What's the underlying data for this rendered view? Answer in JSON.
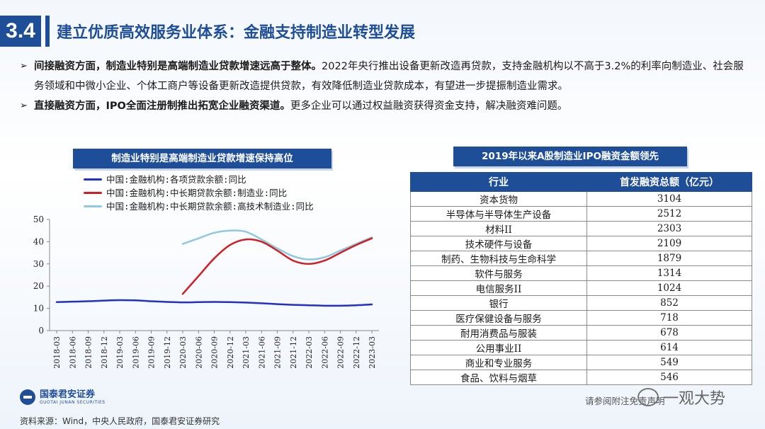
{
  "section": {
    "number": "3.4",
    "title": "建立优质高效服务业体系：金融支持制造业转型发展"
  },
  "bullets": [
    {
      "bold": "间接融资方面，制造业特别是高端制造业贷款增速远高于整体。",
      "text": "2022年央行推出设备更新改造再贷款，支持金融机构以不高于3.2%的利率向制造业、社会服务领域和中微小企业、个体工商户等设备更新改造提供贷款，有效降低制造业贷款成本，有望进一步提振制造业需求。"
    },
    {
      "bold": "直接融资方面，IPO全面注册制推出拓宽企业融资渠道。",
      "text": "更多企业可以通过权益融资获得资金支持，解决融资难问题。"
    }
  ],
  "chart_data": {
    "type": "line",
    "title": "制造业特别是高端制造业贷款增速保持高位",
    "x": [
      "2018-03",
      "2018-06",
      "2018-09",
      "2018-12",
      "2019-03",
      "2019-06",
      "2019-09",
      "2019-12",
      "2020-03",
      "2020-06",
      "2020-09",
      "2020-12",
      "2021-03",
      "2021-06",
      "2021-09",
      "2021-12",
      "2022-03",
      "2022-06",
      "2022-09",
      "2022-12",
      "2023-03"
    ],
    "ylim": [
      0,
      50
    ],
    "yticks": [
      0,
      10,
      20,
      30,
      40,
      50
    ],
    "series": [
      {
        "name": "中国:金融机构:各项贷款余额:同比",
        "color": "#2030c8",
        "values": [
          12.8,
          13.0,
          13.2,
          13.5,
          13.7,
          13.6,
          13.2,
          12.9,
          12.7,
          12.8,
          12.9,
          12.8,
          12.6,
          12.3,
          11.9,
          11.6,
          11.4,
          11.2,
          11.2,
          11.4,
          11.8
        ]
      },
      {
        "name": "中国:金融机构:中长期贷款余额:制造业:同比",
        "color": "#d01e24",
        "values": [
          null,
          null,
          null,
          null,
          null,
          null,
          null,
          null,
          16.5,
          24.5,
          32.5,
          38.5,
          41.0,
          40.0,
          36.0,
          31.5,
          30.0,
          31.5,
          35.0,
          38.5,
          41.5
        ]
      },
      {
        "name": "中国:金融机构:中长期贷款余额:高技术制造业:同比",
        "color": "#8ec9e0",
        "values": [
          null,
          null,
          null,
          null,
          null,
          null,
          null,
          null,
          39.0,
          41.5,
          44.0,
          45.0,
          44.5,
          41.0,
          37.0,
          33.5,
          32.0,
          33.0,
          36.0,
          39.0,
          42.0
        ]
      }
    ]
  },
  "table": {
    "title": "2019年以来A股制造业IPO融资金额领先",
    "headers": [
      "行业",
      "首发融资总额（亿元）"
    ],
    "rows": [
      [
        "资本货物",
        "3104"
      ],
      [
        "半导体与半导体生产设备",
        "2512"
      ],
      [
        "材料II",
        "2303"
      ],
      [
        "技术硬件与设备",
        "2109"
      ],
      [
        "制药、生物科技与生命科学",
        "1879"
      ],
      [
        "软件与服务",
        "1314"
      ],
      [
        "电信服务II",
        "1024"
      ],
      [
        "银行",
        "852"
      ],
      [
        "医疗保健设备与服务",
        "718"
      ],
      [
        "耐用消费品与服装",
        "678"
      ],
      [
        "公用事业II",
        "614"
      ],
      [
        "商业和专业服务",
        "549"
      ],
      [
        "食品、饮料与烟草",
        "546"
      ]
    ]
  },
  "footer": {
    "logo_cn": "国泰君安证券",
    "logo_en": "GUOTAI JUNAN SECURITIES",
    "source": "资料来源：Wind，中央人民政府，国泰君安证券研究",
    "disclaimer": "请参阅附注免责声明",
    "watermark": "一观大势"
  },
  "colors": {
    "brand": "#1f4e99"
  }
}
